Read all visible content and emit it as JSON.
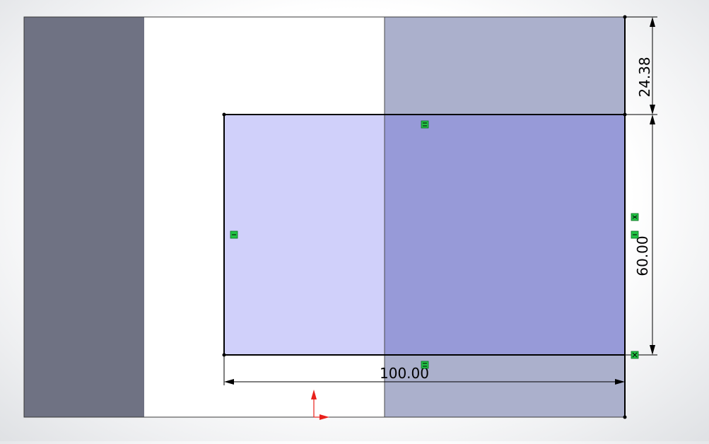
{
  "sketch": {
    "dimensions": {
      "top_offset": "24.38",
      "height": "60.00",
      "width": "100.00"
    },
    "relations": {
      "top_edge": "horizontal-relation-icon",
      "bottom_edge": "horizontal-relation-icon",
      "left_edge": "vertical-relation-icon",
      "right_edge": "vertical-relation-icon",
      "right_edge_collinear": "collinear-relation-icon",
      "corner": "coincident-relation-icon"
    },
    "colors": {
      "dark_face": "#6f7283",
      "body_face": "#abb0cc",
      "sketch_fill": "#d0d0fa",
      "overlap_fill": "#979ad8",
      "relation_badge": "#22c345",
      "origin_arrow": "#e8201b"
    }
  }
}
